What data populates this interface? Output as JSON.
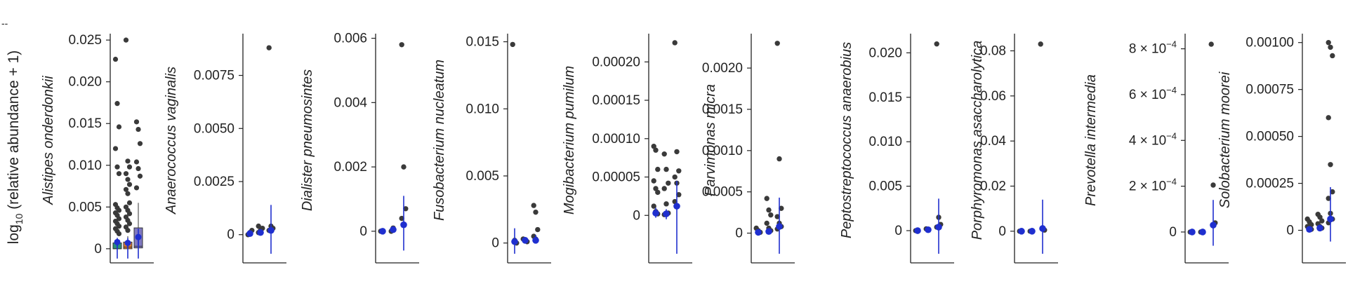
{
  "figure": {
    "corner_mark": "--",
    "ylabel": {
      "prefix": "log",
      "subscript": "10",
      "suffix": " (relative abundance + 1)"
    }
  },
  "colors": {
    "axis": "#222222",
    "points": "#3a3a3a",
    "blue": "#1f2fcf",
    "box_green": "#2a8f7a",
    "box_orange": "#e07a2c",
    "box_purple": "#7f78c0"
  },
  "chart_data": [
    {
      "type": "box",
      "species": "Alistipes onderdonkii",
      "ylim": [
        -0.0006,
        0.0256
      ],
      "ticks": [
        {
          "value": 0,
          "label": "0"
        },
        {
          "value": 0.005,
          "label": "0.005"
        },
        {
          "value": 0.01,
          "label": "0.010"
        },
        {
          "value": 0.015,
          "label": "0.015"
        },
        {
          "value": 0.02,
          "label": "0.020"
        },
        {
          "value": 0.025,
          "label": "0.025"
        }
      ],
      "boxes": [
        {
          "color": "#2a8f7a",
          "q1": 0,
          "median": 0,
          "q3": 0.0007,
          "whisker_high": 0.0012,
          "mean": 0.0008,
          "mean_err": 0.0005,
          "points": [
            0.0227,
            0.0174,
            0.0146,
            0.012,
            0.0098,
            0.009,
            0.0053,
            0.0049,
            0.0046,
            0.0043,
            0.004,
            0.0036,
            0.0033,
            0.003,
            0.0027,
            0.0024,
            0.0021,
            0.0018
          ]
        },
        {
          "color": "#e07a2c",
          "q1": 0,
          "median": 0.0002,
          "q3": 0.0008,
          "whisker_high": 0.0015,
          "mean": 0.0007,
          "mean_err": 0.0006,
          "points": [
            0.025,
            0.0105,
            0.0098,
            0.009,
            0.0083,
            0.0077,
            0.0071,
            0.0066,
            0.0055,
            0.005,
            0.0046,
            0.0042,
            0.0038,
            0.0034,
            0.003,
            0.0026,
            0.0022
          ]
        },
        {
          "color": "#7f78c0",
          "q1": 0.0001,
          "median": 0.0003,
          "q3": 0.0025,
          "whisker_high": 0.0055,
          "mean": 0.0014,
          "mean_err": 0.001,
          "points": [
            0.0152,
            0.0143,
            0.0126,
            0.0104,
            0.0096,
            0.0087,
            0.0073
          ]
        }
      ]
    },
    {
      "type": "scatter",
      "species": "Anaerococcus vaginalis",
      "ylim": [
        -0.0009,
        0.0094
      ],
      "ticks": [
        {
          "value": 0,
          "label": "0"
        },
        {
          "value": 0.0025,
          "label": "0.0025"
        },
        {
          "value": 0.005,
          "label": "0.0050"
        },
        {
          "value": 0.0075,
          "label": "0.0075"
        }
      ],
      "groups": [
        {
          "points": [
            0.0,
            0.0001,
            0.0002
          ],
          "mean": 5e-05,
          "ci": [
            0,
            0.0001
          ]
        },
        {
          "points": [
            0.0001,
            0.0002,
            0.0003,
            0.0004
          ],
          "mean": 0.0001,
          "ci": [
            0,
            0.0002
          ]
        },
        {
          "points": [
            0.0088,
            0.0004,
            0.0003,
            0.0002
          ],
          "mean": 0.0002,
          "ci": [
            -0.0009,
            0.0014
          ]
        }
      ]
    },
    {
      "type": "scatter",
      "species": "Dialister pneumosintes",
      "ylim": [
        -0.0007,
        0.0061
      ],
      "ticks": [
        {
          "value": 0,
          "label": "0"
        },
        {
          "value": 0.002,
          "label": "0.002"
        },
        {
          "value": 0.004,
          "label": "0.004"
        },
        {
          "value": 0.006,
          "label": "0.006"
        }
      ],
      "groups": [
        {
          "points": [
            0.0
          ],
          "mean": 0.0,
          "ci": [
            0,
            0
          ]
        },
        {
          "points": [
            0.0,
            0.0001
          ],
          "mean": 5e-05,
          "ci": [
            0,
            0.0001
          ]
        },
        {
          "points": [
            0.0058,
            0.002,
            0.0007,
            0.0004,
            0.0002
          ],
          "mean": 0.0002,
          "ci": [
            -0.0006,
            0.0011
          ]
        }
      ]
    },
    {
      "type": "scatter",
      "species": "Fusobacterium nucleatum",
      "ylim": [
        -0.0008,
        0.0155
      ],
      "ticks": [
        {
          "value": 0,
          "label": "0"
        },
        {
          "value": 0.005,
          "label": "0.005"
        },
        {
          "value": 0.01,
          "label": "0.010"
        },
        {
          "value": 0.015,
          "label": "0.015"
        }
      ],
      "groups": [
        {
          "points": [
            0.0148,
            0.0002,
            0.0
          ],
          "mean": 0.0001,
          "ci": [
            -0.0008,
            0.0011
          ]
        },
        {
          "points": [
            0.0003,
            0.0002,
            0.0001
          ],
          "mean": 0.0002,
          "ci": [
            0.0001,
            0.0003
          ]
        },
        {
          "points": [
            0.0028,
            0.0023,
            0.001,
            0.0005,
            0.0003
          ],
          "mean": 0.0002,
          "ci": [
            0,
            0.0006
          ]
        }
      ]
    },
    {
      "type": "scatter",
      "species": "Mogibacterium pumilum",
      "ylim": [
        -5e-05,
        0.000235
      ],
      "ticks": [
        {
          "value": 0,
          "label": "0"
        },
        {
          "value": 5e-05,
          "label": "0.00005"
        },
        {
          "value": 0.0001,
          "label": "0.00010"
        },
        {
          "value": 0.00015,
          "label": "0.00015"
        },
        {
          "value": 0.0002,
          "label": "0.00020"
        }
      ],
      "groups": [
        {
          "points": [
            9e-05,
            8.5e-05,
            6e-05,
            4.5e-05,
            3.5e-05,
            3e-05,
            1.2e-05,
            5e-06,
            2e-06
          ],
          "mean": 3e-06,
          "ci": [
            -3e-06,
            1e-05
          ]
        },
        {
          "points": [
            8e-05,
            6e-05,
            4.2e-05,
            3.5e-05,
            1.5e-05,
            3e-06,
            1e-06
          ],
          "mean": 2e-06,
          "ci": [
            -5e-06,
            8e-06
          ]
        },
        {
          "points": [
            0.000225,
            8.3e-05,
            5.8e-05,
            5e-05,
            4.2e-05,
            2.7e-05,
            1.8e-05,
            1.2e-05
          ],
          "mean": 1.2e-05,
          "ci": [
            -5e-05,
            4.5e-05
          ]
        }
      ]
    },
    {
      "type": "scatter",
      "species": "Parvimonas micra",
      "ylim": [
        -0.00025,
        0.0024
      ],
      "ticks": [
        {
          "value": 0,
          "label": "0"
        },
        {
          "value": 0.0005,
          "label": "0.0005"
        },
        {
          "value": 0.001,
          "label": "0.0010"
        },
        {
          "value": 0.0015,
          "label": "0.0015"
        },
        {
          "value": 0.002,
          "label": "0.0020"
        }
      ],
      "groups": [
        {
          "points": [
            6e-05,
            3e-05,
            1e-05
          ],
          "mean": 1e-05,
          "ci": [
            0,
            3e-05
          ]
        },
        {
          "points": [
            0.00042,
            0.00028,
            0.00022,
            0.00012,
            6e-05,
            3e-05
          ],
          "mean": 2e-05,
          "ci": [
            0,
            6e-05
          ]
        },
        {
          "points": [
            0.0023,
            0.0009,
            0.0003,
            0.0002,
            0.00012,
            8e-05,
            5e-05
          ],
          "mean": 8e-05,
          "ci": [
            -0.00025,
            0.00043
          ]
        }
      ]
    },
    {
      "type": "scatter",
      "species": "Peptostreptococcus anaerobius",
      "ylim": [
        -0.0026,
        0.022
      ],
      "ticks": [
        {
          "value": 0,
          "label": "0"
        },
        {
          "value": 0.005,
          "label": "0.005"
        },
        {
          "value": 0.01,
          "label": "0.010"
        },
        {
          "value": 0.015,
          "label": "0.015"
        },
        {
          "value": 0.02,
          "label": "0.020"
        }
      ],
      "groups": [
        {
          "points": [
            0.0
          ],
          "mean": 0.0,
          "ci": [
            0,
            0
          ]
        },
        {
          "points": [
            0.0002,
            0.0001
          ],
          "mean": 0.0001,
          "ci": [
            0,
            0.0002
          ]
        },
        {
          "points": [
            0.021,
            0.0015,
            0.0007,
            0.0004
          ],
          "mean": 0.0004,
          "ci": [
            -0.0026,
            0.0036
          ]
        }
      ]
    },
    {
      "type": "scatter",
      "species": "Porphyromonas asaccharolytica",
      "ylim": [
        -0.01,
        0.087
      ],
      "ticks": [
        {
          "value": 0,
          "label": "0"
        },
        {
          "value": 0.02,
          "label": "0.02"
        },
        {
          "value": 0.04,
          "label": "0.04"
        },
        {
          "value": 0.06,
          "label": "0.06"
        },
        {
          "value": 0.08,
          "label": "0.08"
        }
      ],
      "groups": [
        {
          "points": [
            0.0
          ],
          "mean": 0.0,
          "ci": [
            0,
            0
          ]
        },
        {
          "points": [
            0.0
          ],
          "mean": 0.0,
          "ci": [
            0,
            0
          ]
        },
        {
          "points": [
            0.083,
            0.001,
            0.0005
          ],
          "mean": 0.0012,
          "ci": [
            -0.01,
            0.014
          ]
        }
      ]
    },
    {
      "type": "scatter",
      "species": "Prevotella intermedia",
      "ylim": [
        -9.5e-05,
        0.00086
      ],
      "ticks": [
        {
          "value": 0,
          "label": "0",
          "sup": ""
        },
        {
          "value": 0.0002,
          "label": "2 × 10",
          "sup": "−4"
        },
        {
          "value": 0.0004,
          "label": "4 × 10",
          "sup": "−4"
        },
        {
          "value": 0.0006,
          "label": "6 × 10",
          "sup": "−4"
        },
        {
          "value": 0.0008,
          "label": "8 × 10",
          "sup": "−4"
        }
      ],
      "groups": [
        {
          "points": [
            0.0
          ],
          "mean": 0.0,
          "ci": [
            0,
            0
          ]
        },
        {
          "points": [
            0.0
          ],
          "mean": 0.0,
          "ci": [
            0,
            0
          ]
        },
        {
          "points": [
            0.00082,
            0.000205,
            4e-05
          ],
          "mean": 3e-05,
          "ci": [
            -6e-05,
            0.00014
          ]
        }
      ]
    },
    {
      "type": "scatter",
      "species": "Solobacterium moorei",
      "ylim": [
        -0.000125,
        0.00104
      ],
      "ticks": [
        {
          "value": 0,
          "label": "0"
        },
        {
          "value": 0.00025,
          "label": "0.00025"
        },
        {
          "value": 0.0005,
          "label": "0.00050"
        },
        {
          "value": 0.00075,
          "label": "0.00075"
        },
        {
          "value": 0.001,
          "label": "0.00100"
        }
      ],
      "groups": [
        {
          "points": [
            6e-05,
            4.5e-05,
            3e-05,
            2e-05,
            1e-05,
            5e-06
          ],
          "mean": 5e-06,
          "ci": [
            0,
            1.2e-05
          ]
        },
        {
          "points": [
            8.5e-05,
            7e-05,
            5e-05,
            3.5e-05,
            2e-05,
            1.2e-05
          ],
          "mean": 1.2e-05,
          "ci": [
            0,
            2.5e-05
          ]
        },
        {
          "points": [
            0.001,
            0.000975,
            0.00093,
            0.0006,
            0.00035,
            0.000205,
            0.00017,
            9e-05,
            6e-05,
            4e-05
          ],
          "mean": 6e-05,
          "ci": [
            -6e-05,
            0.00023
          ]
        }
      ]
    }
  ]
}
